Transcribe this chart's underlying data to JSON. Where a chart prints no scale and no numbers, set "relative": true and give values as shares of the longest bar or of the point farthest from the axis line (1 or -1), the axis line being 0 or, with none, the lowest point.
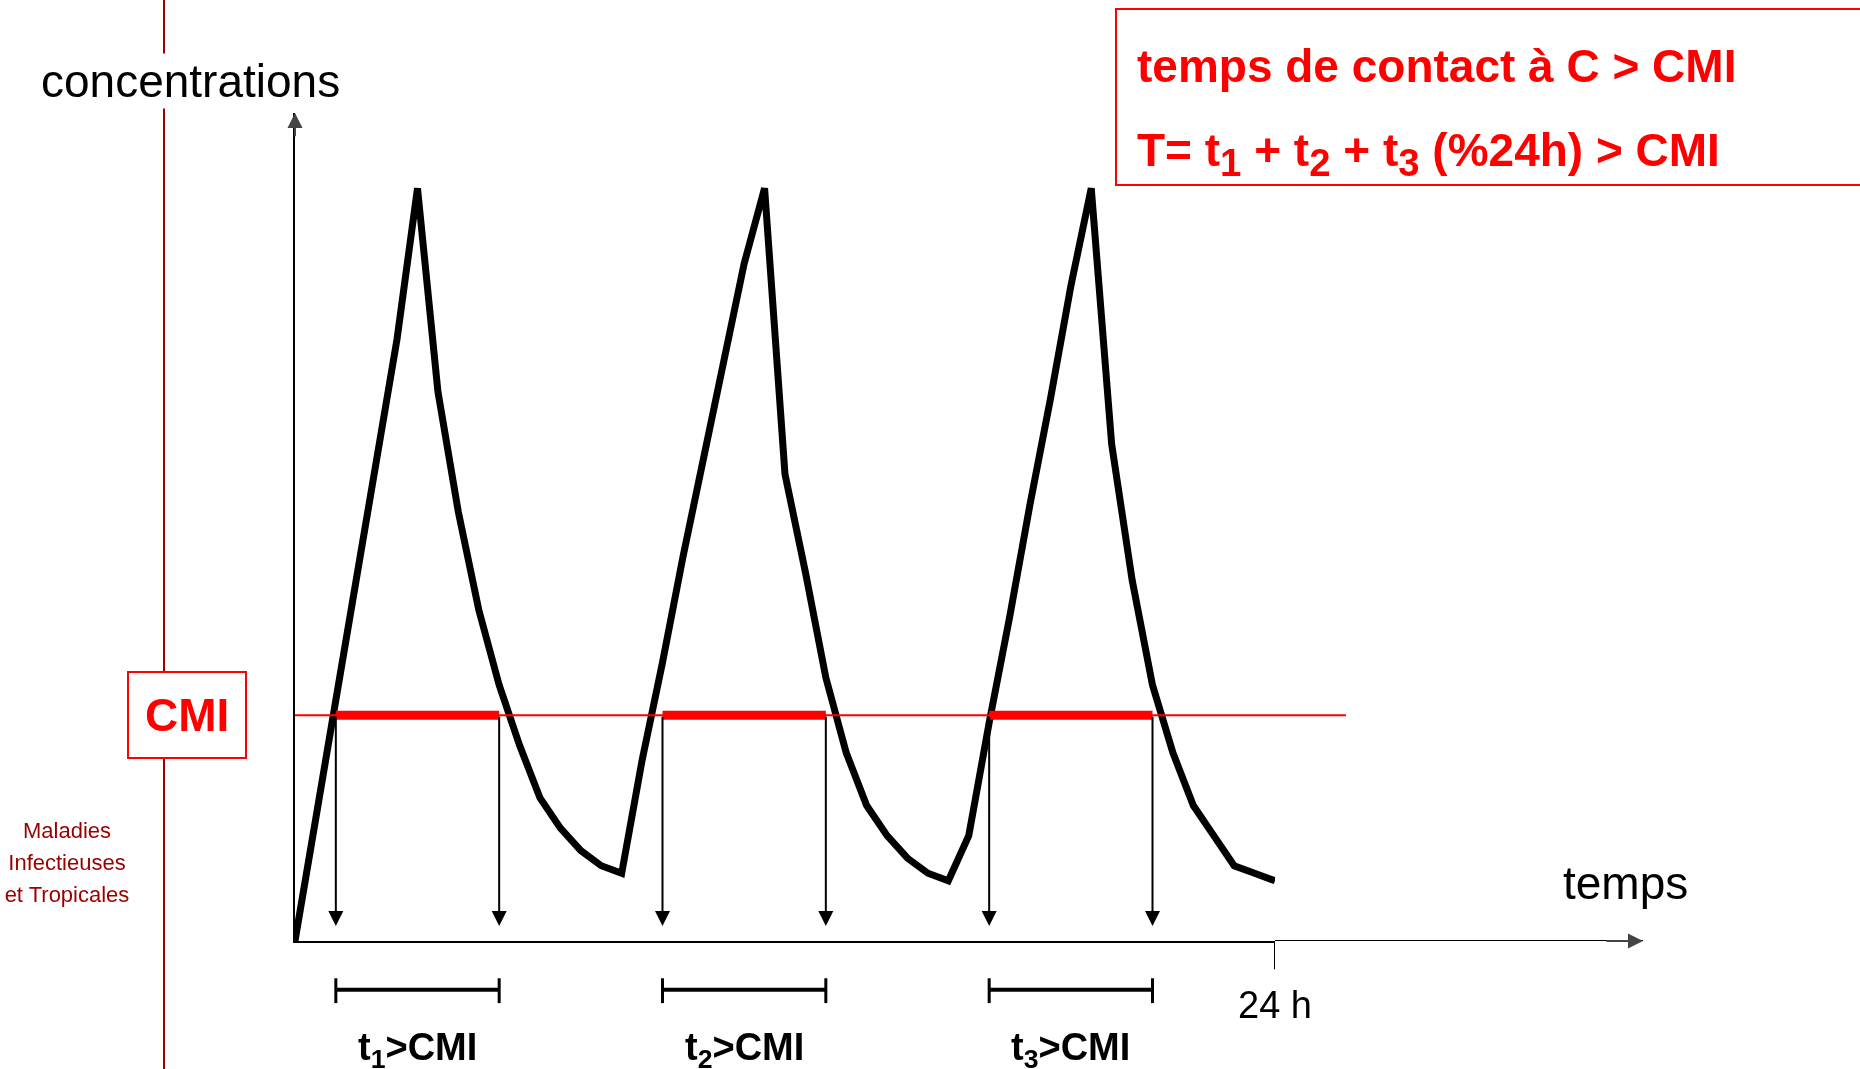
{
  "chart_data": {
    "type": "line",
    "relative": true,
    "ylabel": "concentrations",
    "categories": [
      null,
      null,
      null,
      null,
      null,
      null,
      null,
      null,
      null,
      null,
      null,
      null,
      null,
      null,
      null,
      null,
      null,
      null,
      null,
      null,
      null,
      null,
      null,
      null,
      null,
      null,
      null,
      null,
      null,
      null,
      null,
      null,
      null,
      null,
      null,
      null,
      null,
      null,
      null,
      null,
      null,
      null,
      null,
      null,
      null,
      null,
      null,
      null,
      null
    ],
    "series": [
      {
        "color": "#000000",
        "values": [
          0,
          0.16,
          0.32,
          0.48,
          0.64,
          0.8,
          1.0,
          0.73,
          0.57,
          0.44,
          0.34,
          0.26,
          0.19,
          0.15,
          0.12,
          0.1,
          0.09,
          0.24,
          0.37,
          0.51,
          0.64,
          0.77,
          0.9,
          1.0,
          0.62,
          0.49,
          0.35,
          0.25,
          0.18,
          0.14,
          0.11,
          0.09,
          0.08,
          0.14,
          0.29,
          0.43,
          0.58,
          0.72,
          0.87,
          1.0,
          0.66,
          0.48,
          0.34,
          0.25,
          0.18,
          0.14,
          0.1,
          0.09,
          0.08
        ]
      },
      {
        "color": "#ff0000",
        "values": [
          null,
          null,
          0.3,
          0.3,
          0.3,
          0.3,
          0.3,
          0.3,
          0.3,
          0.3,
          0.3,
          null,
          null,
          null,
          null,
          null,
          null,
          null,
          null,
          null,
          null,
          null,
          null,
          null,
          null,
          null,
          null,
          null,
          null,
          null,
          null,
          null,
          null,
          null,
          null,
          null,
          null,
          null,
          null,
          null,
          null,
          null,
          null,
          null,
          null,
          null,
          null,
          null,
          null
        ]
      },
      {
        "color": "#ff0000",
        "values": [
          null,
          null,
          null,
          null,
          null,
          null,
          null,
          null,
          null,
          null,
          null,
          null,
          null,
          null,
          null,
          null,
          null,
          null,
          0.3,
          0.3,
          0.3,
          0.3,
          0.3,
          0.3,
          0.3,
          0.3,
          0.3,
          null,
          null,
          null,
          null,
          null,
          null,
          null,
          null,
          null,
          null,
          null,
          null,
          null,
          null,
          null,
          null,
          null,
          null,
          null,
          null,
          null,
          null
        ]
      },
      {
        "color": "#ff0000",
        "values": [
          null,
          null,
          null,
          null,
          null,
          null,
          null,
          null,
          null,
          null,
          null,
          null,
          null,
          null,
          null,
          null,
          null,
          null,
          null,
          null,
          null,
          null,
          null,
          null,
          null,
          null,
          null,
          null,
          null,
          null,
          null,
          null,
          null,
          null,
          0.3,
          0.3,
          0.3,
          0.3,
          0.3,
          0.3,
          0.3,
          0.3,
          0.3,
          null,
          null,
          null,
          null,
          null,
          null
        ]
      }
    ],
    "ref_lines": [
      {
        "axis": "y",
        "value": 0.3,
        "label": "CMI",
        "color": "#ff0000"
      }
    ],
    "annotations": [
      "temps de contact à C > CMI",
      "T= t$_{1}$ + t$_{2}$ + t$_{3}$ (%24h) > CMI",
      "Maladies Infectieuses et Tropicales",
      "temps",
      "t$_{1}$>CMI",
      "t$_{2}$>CMI",
      "t$_{3}$>CMI",
      "24 h"
    ]
  }
}
